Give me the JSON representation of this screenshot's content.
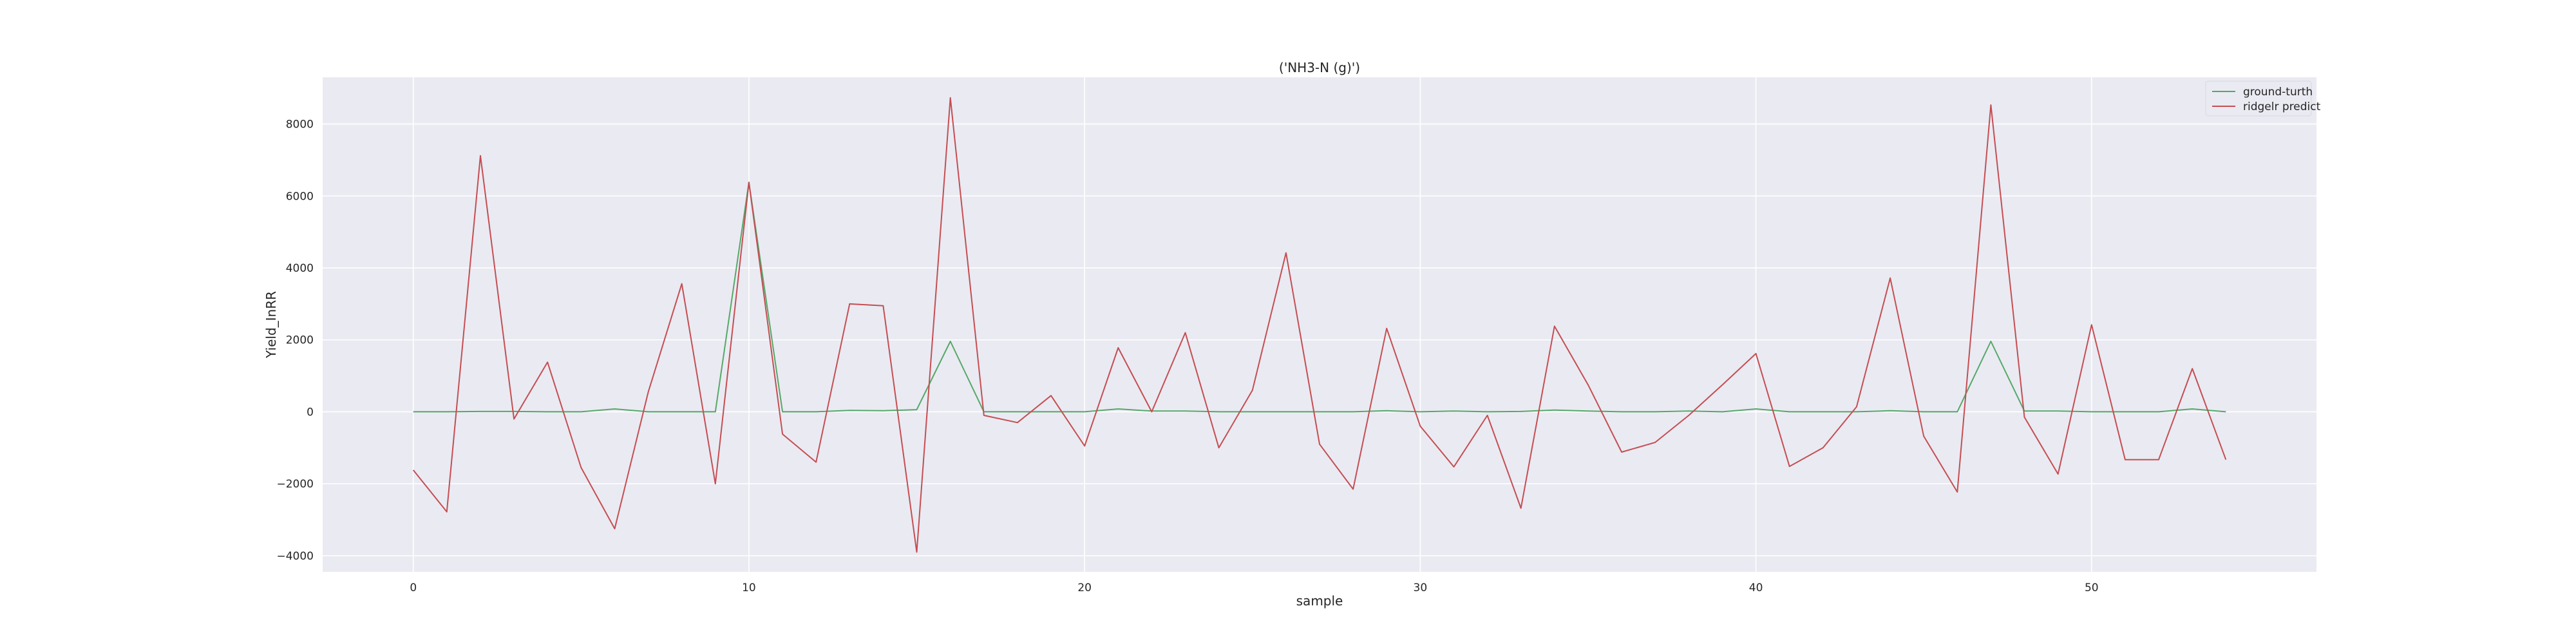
{
  "chart_data": {
    "type": "line",
    "title": "('NH3-N (g)')",
    "xlabel": "sample",
    "ylabel": "Yield_InRR",
    "xlim": [
      -2.7,
      56.7
    ],
    "ylim": [
      -4450,
      9300
    ],
    "xticks": [
      0,
      10,
      20,
      30,
      40,
      50
    ],
    "yticks": [
      -4000,
      -2000,
      0,
      2000,
      4000,
      6000,
      8000
    ],
    "grid": true,
    "legend_position": "top-right",
    "x": [
      0,
      1,
      2,
      3,
      4,
      5,
      6,
      7,
      8,
      9,
      10,
      11,
      12,
      13,
      14,
      15,
      16,
      17,
      18,
      19,
      20,
      21,
      22,
      23,
      24,
      25,
      26,
      27,
      28,
      29,
      30,
      31,
      32,
      33,
      34,
      35,
      36,
      37,
      38,
      39,
      40,
      41,
      42,
      43,
      44,
      45,
      46,
      47,
      48,
      49,
      50,
      51,
      52,
      53,
      54
    ],
    "series": [
      {
        "name": "ground-turth",
        "color": "#55a868",
        "values": [
          0,
          0,
          10,
          10,
          0,
          0,
          80,
          0,
          0,
          0,
          6380,
          0,
          0,
          40,
          30,
          60,
          1960,
          0,
          0,
          0,
          0,
          80,
          20,
          20,
          0,
          0,
          0,
          0,
          0,
          30,
          0,
          20,
          0,
          10,
          50,
          20,
          0,
          0,
          20,
          0,
          80,
          0,
          0,
          0,
          30,
          0,
          0,
          1960,
          20,
          20,
          0,
          0,
          0,
          80,
          0
        ]
      },
      {
        "name": "ridgelr predict",
        "color": "#c44e52",
        "values": [
          -1620,
          -2780,
          7120,
          -200,
          1380,
          -1550,
          -3250,
          550,
          3560,
          -2000,
          6380,
          -620,
          -1400,
          3000,
          2950,
          -3900,
          8730,
          -100,
          -300,
          450,
          -950,
          1780,
          0,
          2200,
          -1000,
          600,
          4420,
          -900,
          -2150,
          2320,
          -400,
          -1530,
          -100,
          -2680,
          2380,
          750,
          -1120,
          -850,
          -100,
          750,
          1620,
          -1520,
          -1000,
          140,
          3720,
          -680,
          -2230,
          8530,
          -150,
          -1730,
          2420,
          -1330,
          -1330,
          1200,
          -1330
        ]
      }
    ]
  }
}
